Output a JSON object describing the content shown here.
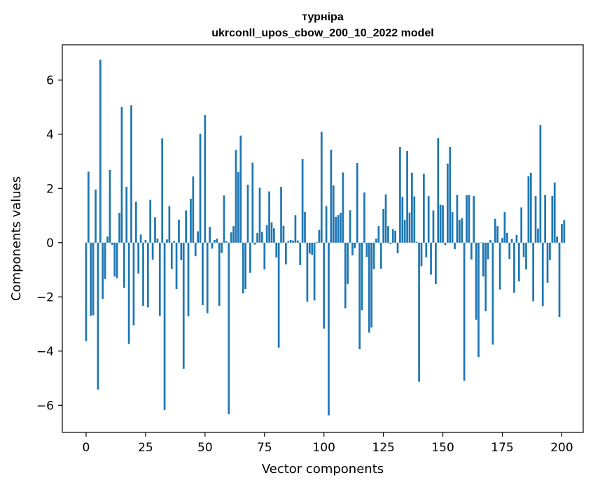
{
  "chart_data": {
    "type": "bar",
    "title_line1": "турніра",
    "title_line2": "ukrconll_upos_cbow_200_10_2022 model",
    "xlabel": "Vector components",
    "ylabel": "Components values",
    "xlim": [
      -10,
      209
    ],
    "ylim": [
      -7,
      7.3
    ],
    "xticks": [
      {
        "value": 0,
        "label": "0"
      },
      {
        "value": 25,
        "label": "25"
      },
      {
        "value": 50,
        "label": "50"
      },
      {
        "value": 75,
        "label": "75"
      },
      {
        "value": 100,
        "label": "100"
      },
      {
        "value": 125,
        "label": "125"
      },
      {
        "value": 150,
        "label": "150"
      },
      {
        "value": 175,
        "label": "175"
      },
      {
        "value": 200,
        "label": "200"
      }
    ],
    "yticks": [
      {
        "value": -6,
        "label": "−6"
      },
      {
        "value": -4,
        "label": "−4"
      },
      {
        "value": -2,
        "label": "−2"
      },
      {
        "value": 0,
        "label": "0"
      },
      {
        "value": 2,
        "label": "2"
      },
      {
        "value": 4,
        "label": "4"
      },
      {
        "value": 6,
        "label": "6"
      }
    ],
    "bar_color": "#1f77b4",
    "values": [
      -3.63,
      2.62,
      -2.7,
      -2.68,
      1.96,
      -5.42,
      6.75,
      -2.07,
      -1.34,
      0.23,
      2.68,
      -0.08,
      -1.25,
      -1.31,
      1.1,
      5.0,
      -1.67,
      2.06,
      -3.74,
      5.07,
      -3.05,
      1.51,
      -1.14,
      0.3,
      -2.33,
      0.1,
      -2.39,
      1.58,
      -0.63,
      0.94,
      0.15,
      -2.7,
      3.85,
      -6.17,
      0.12,
      1.35,
      -0.97,
      0.06,
      -1.71,
      0.85,
      -0.65,
      -4.65,
      1.19,
      -2.72,
      1.62,
      2.44,
      -0.5,
      0.42,
      4.02,
      -2.3,
      4.71,
      -2.6,
      0.58,
      -0.22,
      0.1,
      0.15,
      -2.33,
      -0.38,
      1.74,
      0.05,
      -6.33,
      0.38,
      0.61,
      3.42,
      2.6,
      3.95,
      -1.87,
      -1.71,
      2.14,
      -1.11,
      2.95,
      -0.07,
      0.36,
      2.03,
      0.4,
      -0.99,
      0.64,
      1.89,
      0.75,
      0.53,
      -0.55,
      -3.87,
      2.06,
      0.62,
      -0.8,
      0.06,
      0.1,
      0.08,
      1.02,
      0.08,
      -0.83,
      3.09,
      1.13,
      -2.18,
      -0.4,
      -0.45,
      -2.13,
      0.02,
      0.47,
      4.09,
      -3.17,
      1.35,
      -6.37,
      3.43,
      2.11,
      0.95,
      1.02,
      1.1,
      2.59,
      -2.42,
      -1.52,
      1.2,
      -0.47,
      -0.2,
      2.94,
      -3.93,
      -2.49,
      1.85,
      -0.53,
      -3.32,
      -3.13,
      -0.97,
      0.15,
      0.61,
      -0.96,
      1.24,
      1.78,
      0.61,
      -0.05,
      0.5,
      0.44,
      -0.39,
      3.53,
      1.69,
      0.84,
      3.38,
      1.11,
      2.58,
      1.71,
      0.03,
      -5.13,
      -0.87,
      2.54,
      -0.54,
      1.72,
      -1.18,
      1.19,
      -1.53,
      3.86,
      1.4,
      1.38,
      -0.09,
      2.92,
      3.53,
      1.13,
      -0.24,
      1.76,
      0.84,
      0.9,
      -5.09,
      1.75,
      1.76,
      -0.62,
      1.72,
      -2.84,
      -4.22,
      0.01,
      -1.25,
      -2.53,
      -0.61,
      0.1,
      -3.76,
      0.88,
      0.61,
      -1.73,
      0.17,
      1.13,
      0.36,
      -0.6,
      0.14,
      -1.85,
      0.28,
      -1.43,
      1.3,
      -0.53,
      -0.99,
      2.45,
      2.58,
      -2.16,
      1.72,
      0.52,
      4.34,
      -2.34,
      1.76,
      -1.48,
      -0.64,
      1.73,
      2.22,
      0.23,
      -2.74,
      0.69,
      0.83
    ]
  }
}
